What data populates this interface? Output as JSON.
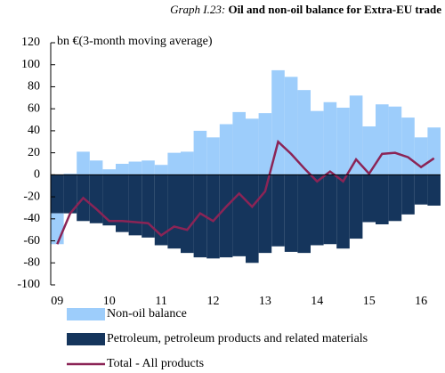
{
  "chart_data": {
    "type": "bar",
    "title": [
      "Graph I.23:",
      "Oil and non-oil balance for Extra-EU trade"
    ],
    "y_label": "bn €(3-month moving average)",
    "categories": [
      "09",
      null,
      null,
      null,
      "10",
      null,
      null,
      null,
      "11",
      null,
      null,
      null,
      "12",
      null,
      null,
      null,
      "13",
      null,
      null,
      null,
      "14",
      null,
      null,
      null,
      "15",
      null,
      null,
      null,
      "16",
      null
    ],
    "series": [
      {
        "name": "Non-oil balance",
        "type": "bar",
        "color": "#9dcdfb",
        "values": [
          -28,
          1,
          21,
          13,
          5,
          10,
          12,
          13,
          9,
          20,
          21,
          40,
          34,
          46,
          57,
          51,
          56,
          95,
          89,
          77,
          58,
          66,
          61,
          72,
          44,
          64,
          62,
          52,
          34,
          43
        ]
      },
      {
        "name": "Petroleum, petroleum products and related materials",
        "type": "bar",
        "color": "#15355c",
        "values": [
          -35,
          -35,
          -42,
          -44,
          -46,
          -52,
          -55,
          -57,
          -64,
          -67,
          -71,
          -75,
          -76,
          -75,
          -74,
          -80,
          -71,
          -65,
          -70,
          -71,
          -64,
          -63,
          -67,
          -58,
          -43,
          -45,
          -42,
          -36,
          -27,
          -28
        ]
      },
      {
        "name": "Total - All products",
        "type": "line",
        "color": "#8b2456",
        "values": [
          -63,
          -35,
          -21,
          -31,
          -42,
          -42,
          -43,
          -44,
          -55,
          -47,
          -50,
          -35,
          -42,
          -29,
          -17,
          -29,
          -15,
          30,
          19,
          6,
          -6,
          3,
          -6,
          14,
          1,
          19,
          20,
          16,
          7,
          15
        ]
      }
    ],
    "ylim": [
      -100,
      120
    ],
    "yticks": [
      -100,
      -80,
      -60,
      -40,
      -20,
      0,
      20,
      40,
      60,
      80,
      100,
      120
    ]
  }
}
